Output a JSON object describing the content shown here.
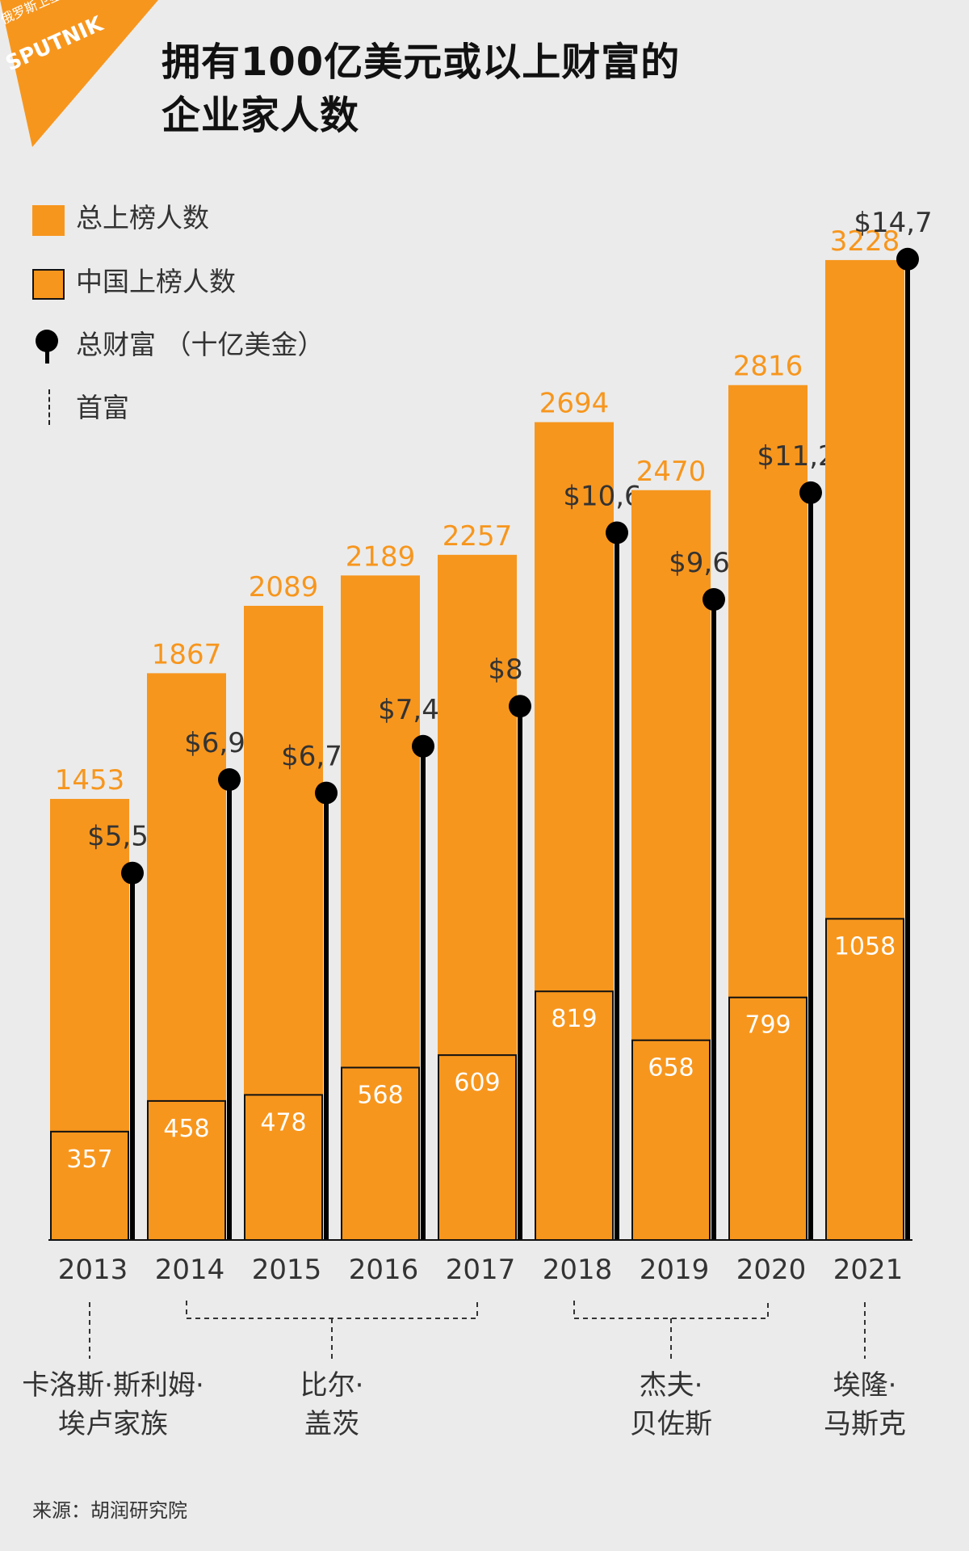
{
  "brand": {
    "agency_name": "俄罗斯卫星通讯社",
    "logo_text": "SPUTNIK",
    "accent": "#f7961d"
  },
  "header": {
    "title_line1": "拥有100亿美元或以上财富的",
    "title_line2": "企业家人数"
  },
  "legend": {
    "total": "总上榜人数",
    "china": "中国上榜人数",
    "wealth": "总财富 （十亿美金）",
    "richest": "首富"
  },
  "chart_data": {
    "type": "bar",
    "title": "拥有100亿美元或以上财富的企业家人数",
    "categories": [
      "2013",
      "2014",
      "2015",
      "2016",
      "2017",
      "2018",
      "2019",
      "2020",
      "2021"
    ],
    "series": [
      {
        "name": "总上榜人数",
        "values": [
          1453,
          1867,
          2089,
          2189,
          2257,
          2694,
          2470,
          2816,
          3228
        ],
        "color": "#f7961d"
      },
      {
        "name": "中国上榜人数",
        "values": [
          357,
          458,
          478,
          568,
          609,
          819,
          658,
          799,
          1058
        ],
        "color": "#f7961d"
      },
      {
        "name": "总财富 （十亿美金）",
        "values": [
          5.5,
          6.9,
          6.7,
          7.4,
          8,
          10.6,
          9.6,
          11.2,
          14.7
        ],
        "color": "#000000"
      }
    ],
    "wealth_labels": [
      "$5,5",
      "$6,9",
      "$6,7",
      "$7,4",
      "$8",
      "$10,6",
      "$9,6",
      "$11,2",
      "$14,7"
    ],
    "richest_groups": [
      {
        "years": [
          "2013"
        ],
        "name_line1": "卡洛斯·斯利姆·",
        "name_line2": "埃卢家族"
      },
      {
        "years": [
          "2014",
          "2015",
          "2016",
          "2017"
        ],
        "name_line1": "比尔·",
        "name_line2": "盖茨"
      },
      {
        "years": [
          "2018",
          "2019",
          "2020"
        ],
        "name_line1": "杰夫·",
        "name_line2": "贝佐斯"
      },
      {
        "years": [
          "2021"
        ],
        "name_line1": "埃隆·",
        "name_line2": "马斯克"
      }
    ],
    "total_label_color": "#f7961d",
    "xlabel": "",
    "ylabel": ""
  },
  "footer": {
    "source": "来源：胡润研究院"
  }
}
